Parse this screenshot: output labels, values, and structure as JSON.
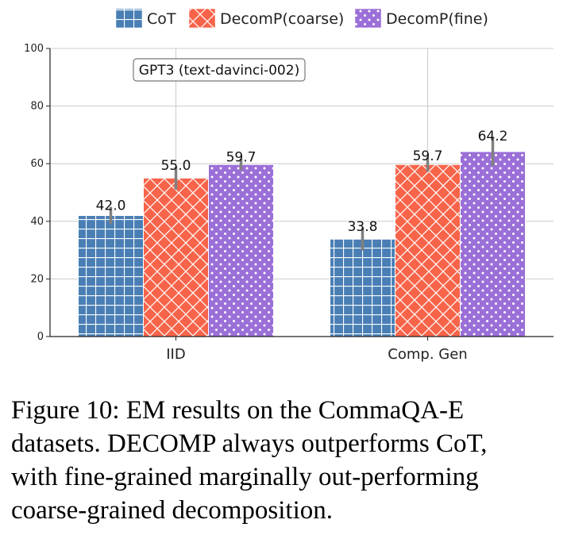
{
  "chart_data": {
    "type": "bar",
    "categories": [
      "IID",
      "Comp. Gen"
    ],
    "series": [
      {
        "name": "CoT",
        "values": [
          42.0,
          33.8
        ],
        "errors": [
          3.0,
          4.0
        ],
        "labels": [
          "42.0",
          "33.8"
        ],
        "color": "#4a7fb5",
        "pattern": "grid"
      },
      {
        "name": "DecomP(coarse)",
        "values": [
          55.0,
          59.7
        ],
        "errors": [
          4.0,
          2.5
        ],
        "labels": [
          "55.0",
          "59.7"
        ],
        "color": "#f7644a",
        "pattern": "crosshatch"
      },
      {
        "name": "DecomP(fine)",
        "values": [
          59.7,
          64.2
        ],
        "errors": [
          2.0,
          5.0
        ],
        "labels": [
          "59.7",
          "64.2"
        ],
        "color": "#9b6fd8",
        "pattern": "dots"
      }
    ],
    "ylim": [
      0,
      100
    ],
    "yticks": [
      "0",
      "20",
      "40",
      "60",
      "80",
      "100"
    ],
    "annotation": "GPT3 (text-davinci-002)",
    "grid": true,
    "legend": "top"
  },
  "caption": {
    "line1": "Figure 10: EM results on the CommaQA-E",
    "line2": "datasets. DECOMP always outperforms CoT,",
    "line3": "with fine-grained marginally out-performing",
    "line4": "coarse-grained decomposition."
  }
}
